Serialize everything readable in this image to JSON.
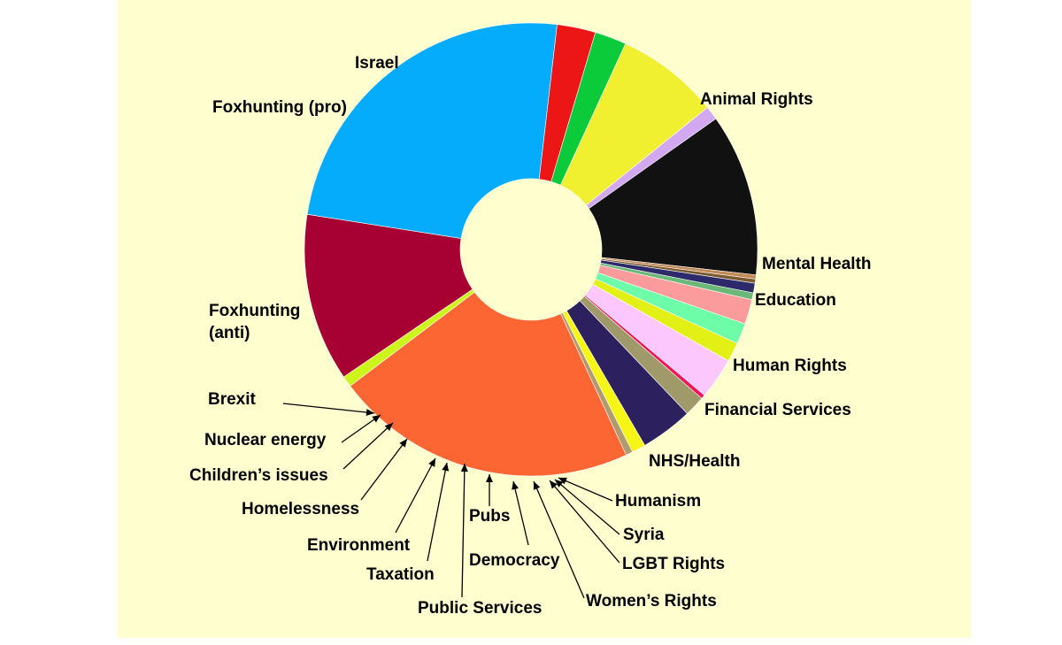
{
  "chart_data": {
    "type": "pie",
    "title": "",
    "colors": {
      "background": "#fefecf",
      "leader": "#000000",
      "slice_border": "#ffffff"
    },
    "slices": [
      {
        "label": "Animal Rights",
        "value": 24.8,
        "color": "#06acfc"
      },
      {
        "label": "Mental Health",
        "value": 2.8,
        "color": "#ec1616"
      },
      {
        "label": "Education",
        "value": 2.3,
        "color": "#0ccb3a"
      },
      {
        "label": "Human Rights",
        "value": 7.5,
        "color": "#f1f030"
      },
      {
        "label": "Financial Services",
        "value": 1.0,
        "color": "#d2a8f0"
      },
      {
        "label": "NHS/Health",
        "value": 11.8,
        "color": "#111111"
      },
      {
        "label": "Humanism",
        "value": 0.3,
        "color": "#c48a55"
      },
      {
        "label": "Syria",
        "value": 0.3,
        "color": "#7a5a30"
      },
      {
        "label": "LGBT Rights",
        "value": 0.7,
        "color": "#2c2a6a"
      },
      {
        "label": "Women’s Rights",
        "value": 0.5,
        "color": "#6ab878"
      },
      {
        "label": "Democracy",
        "value": 1.8,
        "color": "#fc9b9b"
      },
      {
        "label": "Pubs",
        "value": 1.5,
        "color": "#6dfca8"
      },
      {
        "label": "Public Services",
        "value": 1.4,
        "color": "#e3f015"
      },
      {
        "label": "Taxation",
        "value": 3.0,
        "color": "#fcc7fc"
      },
      {
        "label": "Environment",
        "value": 0.3,
        "color": "#f0145a"
      },
      {
        "label": "Homelessness",
        "value": 1.5,
        "color": "#a09a6a"
      },
      {
        "label": "Children’s issues",
        "value": 3.8,
        "color": "#2c215e"
      },
      {
        "label": "Nuclear energy",
        "value": 1.0,
        "color": "#f5f516"
      },
      {
        "label": "Brexit",
        "value": 0.5,
        "color": "#b09a70"
      },
      {
        "label": "Foxhunting (anti)",
        "value": 22.0,
        "color": "#fc6633"
      },
      {
        "label": "Foxhunting (pro)",
        "value": 0.8,
        "color": "#cdf51c"
      },
      {
        "label": "Israel",
        "value": 12.2,
        "color": "#a70032"
      }
    ]
  }
}
